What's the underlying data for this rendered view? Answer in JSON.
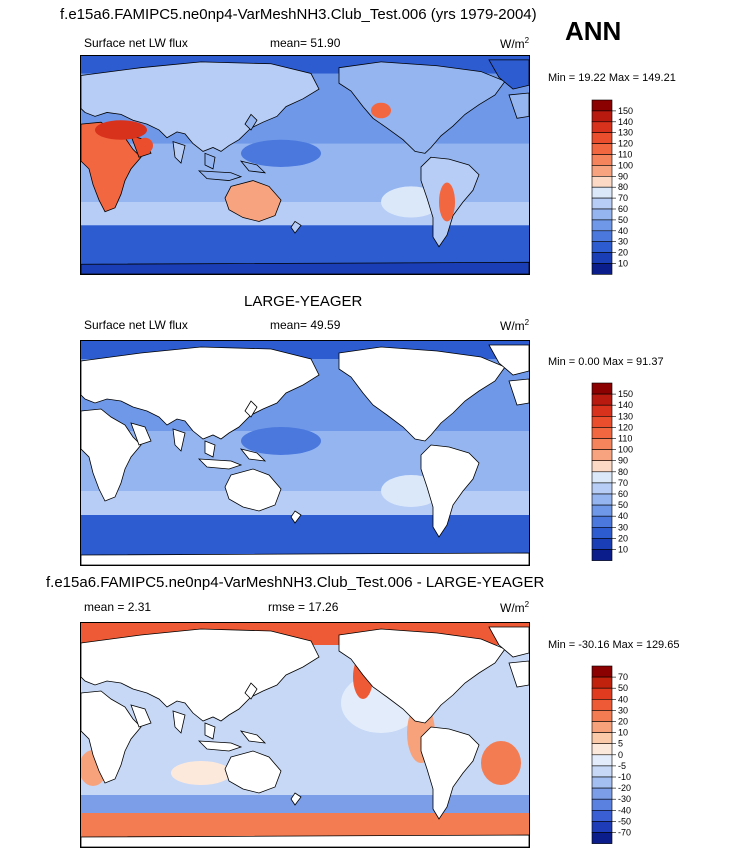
{
  "header": {
    "title": "f.e15a6.FAMIPC5.ne0np4-VarMeshNH3.Club_Test.006 (yrs 1979-2004)",
    "season": "ANN"
  },
  "panels": [
    {
      "title": "",
      "variable": "Surface net LW flux",
      "center_stat": "mean=  51.90",
      "units": "W/m",
      "units_sup": "2",
      "minmax": "Min =  19.22 Max = 149.21",
      "scale": "abs",
      "masked_land": false,
      "colorbar_labels": [
        "150",
        "140",
        "130",
        "120",
        "110",
        "100",
        "90",
        "80",
        "70",
        "60",
        "50",
        "40",
        "30",
        "20",
        "10"
      ]
    },
    {
      "title": "LARGE-YEAGER",
      "variable": "Surface net LW flux",
      "center_stat": "mean=  49.59",
      "units": "W/m",
      "units_sup": "2",
      "minmax": "Min =   0.00 Max =  91.37",
      "scale": "abs",
      "masked_land": true,
      "colorbar_labels": [
        "150",
        "140",
        "130",
        "120",
        "110",
        "100",
        "90",
        "80",
        "70",
        "60",
        "50",
        "40",
        "30",
        "20",
        "10"
      ]
    },
    {
      "title": "f.e15a6.FAMIPC5.ne0np4-VarMeshNH3.Club_Test.006 - LARGE-YEAGER",
      "variable": "mean =   2.31",
      "center_stat": "rmse =  17.26",
      "units": "W/m",
      "units_sup": "2",
      "minmax": "Min = -30.16 Max = 129.65",
      "scale": "diff",
      "masked_land": true,
      "colorbar_labels": [
        "70",
        "50",
        "40",
        "30",
        "20",
        "10",
        "5",
        "0",
        "-5",
        "-10",
        "-20",
        "-30",
        "-40",
        "-50",
        "-70"
      ]
    }
  ],
  "colors": {
    "abs_scale": [
      "#8b0000",
      "#b81a10",
      "#d8321c",
      "#ea4e2c",
      "#f26640",
      "#f5835c",
      "#f8a37f",
      "#fbd9c5",
      "#dbe8fa",
      "#b7cdf5",
      "#94b5f0",
      "#6f98e8",
      "#4a78dd",
      "#2d5bd0",
      "#1a3eb5",
      "#0a1d8a"
    ],
    "diff_scale": [
      "#8b0000",
      "#c0220e",
      "#e03b1f",
      "#ee5a35",
      "#f47c52",
      "#f8a27c",
      "#fbcaa8",
      "#fde9dc",
      "#e3ecfb",
      "#c6d8f6",
      "#a3bef0",
      "#7c9ee8",
      "#5a80e0",
      "#3a5ed4",
      "#1e3cb8",
      "#0a1d8a"
    ],
    "land_mask": "#ffffff",
    "coastline": "#000000"
  }
}
